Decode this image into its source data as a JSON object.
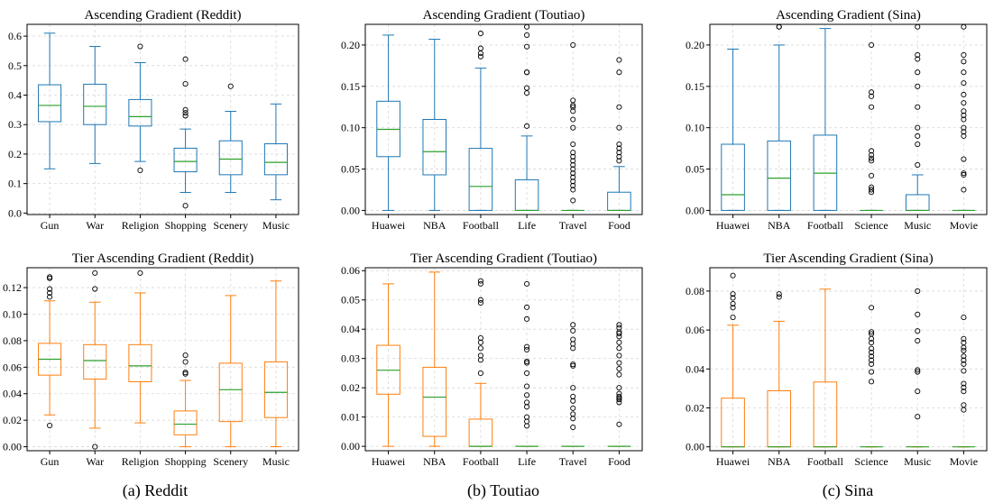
{
  "colors": {
    "asc": "#1f77b4",
    "tier": "#ff7f0e",
    "median": "#2ca02c",
    "outlier": "#000000"
  },
  "captions": [
    {
      "id": "reddit",
      "text": "(a) Reddit"
    },
    {
      "id": "toutiao",
      "text": "(b) Toutiao"
    },
    {
      "id": "sina",
      "text": "(c) Sina"
    }
  ],
  "chart_data": [
    {
      "type": "box",
      "title": "Ascending Gradient (Reddit)",
      "color": "asc",
      "categories": [
        "Gun",
        "War",
        "Religion",
        "Shopping",
        "Scenery",
        "Music"
      ],
      "ylim": [
        -0.005,
        0.64
      ],
      "yticks": [
        0,
        0.1,
        0.2,
        0.3,
        0.4,
        0.5,
        0.6
      ],
      "ytick_labels": [
        "0.0",
        "0.1",
        "0.2",
        "0.3",
        "0.4",
        "0.5",
        "0.6"
      ],
      "boxes": [
        {
          "whislo": 0.15,
          "q1": 0.31,
          "med": 0.365,
          "q3": 0.435,
          "whishi": 0.61,
          "fliers": []
        },
        {
          "whislo": 0.168,
          "q1": 0.3,
          "med": 0.362,
          "q3": 0.437,
          "whishi": 0.565,
          "fliers": []
        },
        {
          "whislo": 0.175,
          "q1": 0.295,
          "med": 0.327,
          "q3": 0.385,
          "whishi": 0.51,
          "fliers": [
            0.565,
            0.145
          ]
        },
        {
          "whislo": 0.07,
          "q1": 0.14,
          "med": 0.175,
          "q3": 0.22,
          "whishi": 0.285,
          "fliers": [
            0.522,
            0.438,
            0.35,
            0.34,
            0.33,
            0.025
          ]
        },
        {
          "whislo": 0.07,
          "q1": 0.13,
          "med": 0.183,
          "q3": 0.245,
          "whishi": 0.345,
          "fliers": [
            0.43
          ]
        },
        {
          "whislo": 0.045,
          "q1": 0.13,
          "med": 0.172,
          "q3": 0.235,
          "whishi": 0.37,
          "fliers": []
        }
      ]
    },
    {
      "type": "box",
      "title": "Ascending Gradient (Toutiao)",
      "color": "asc",
      "categories": [
        "Huawei",
        "NBA",
        "Football",
        "Life",
        "Travel",
        "Food"
      ],
      "ylim": [
        -0.005,
        0.225
      ],
      "yticks": [
        0,
        0.05,
        0.1,
        0.15,
        0.2
      ],
      "ytick_labels": [
        "0.00",
        "0.05",
        "0.10",
        "0.15",
        "0.20"
      ],
      "boxes": [
        {
          "whislo": 0,
          "q1": 0.065,
          "med": 0.098,
          "q3": 0.132,
          "whishi": 0.212,
          "fliers": []
        },
        {
          "whislo": 0,
          "q1": 0.043,
          "med": 0.071,
          "q3": 0.11,
          "whishi": 0.207,
          "fliers": []
        },
        {
          "whislo": 0,
          "q1": 0.0,
          "med": 0.029,
          "q3": 0.075,
          "whishi": 0.172,
          "fliers": [
            0.214,
            0.196,
            0.19,
            0.186
          ]
        },
        {
          "whislo": 0,
          "q1": 0.0,
          "med": 0.0,
          "q3": 0.037,
          "whishi": 0.09,
          "fliers": [
            0.222,
            0.212,
            0.198,
            0.167,
            0.167,
            0.148,
            0.142,
            0.102
          ]
        },
        {
          "whislo": 0,
          "q1": 0.0,
          "med": 0.0,
          "q3": 0.0,
          "whishi": 0.0,
          "fliers": [
            0.2,
            0.133,
            0.127,
            0.125,
            0.12,
            0.11,
            0.1,
            0.08,
            0.07,
            0.065,
            0.06,
            0.055,
            0.05,
            0.045,
            0.04,
            0.035,
            0.03,
            0.025,
            0.012
          ]
        },
        {
          "whislo": 0,
          "q1": 0.0,
          "med": 0.0,
          "q3": 0.022,
          "whishi": 0.053,
          "fliers": [
            0.182,
            0.167,
            0.125,
            0.1,
            0.08,
            0.075,
            0.07,
            0.065,
            0.06
          ]
        }
      ]
    },
    {
      "type": "box",
      "title": "Ascending Gradient (Sina)",
      "color": "asc",
      "categories": [
        "Huawei",
        "NBA",
        "Football",
        "Science",
        "Music",
        "Movie"
      ],
      "ylim": [
        -0.005,
        0.225
      ],
      "yticks": [
        0,
        0.05,
        0.1,
        0.15,
        0.2
      ],
      "ytick_labels": [
        "0.00",
        "0.05",
        "0.10",
        "0.15",
        "0.20"
      ],
      "boxes": [
        {
          "whislo": 0,
          "q1": 0.0,
          "med": 0.019,
          "q3": 0.08,
          "whishi": 0.195,
          "fliers": []
        },
        {
          "whislo": 0,
          "q1": 0.0,
          "med": 0.039,
          "q3": 0.084,
          "whishi": 0.2,
          "fliers": [
            0.222,
            0.222
          ]
        },
        {
          "whislo": 0,
          "q1": 0.0,
          "med": 0.045,
          "q3": 0.091,
          "whishi": 0.22,
          "fliers": []
        },
        {
          "whislo": 0,
          "q1": 0.0,
          "med": 0.0,
          "q3": 0.0,
          "whishi": 0.0,
          "fliers": [
            0.2,
            0.143,
            0.138,
            0.125,
            0.072,
            0.067,
            0.063,
            0.06,
            0.042,
            0.028,
            0.025,
            0.022
          ]
        },
        {
          "whislo": 0,
          "q1": 0.0,
          "med": 0.0,
          "q3": 0.019,
          "whishi": 0.043,
          "fliers": [
            0.222,
            0.188,
            0.183,
            0.167,
            0.15,
            0.125,
            0.1,
            0.09,
            0.08,
            0.055
          ]
        },
        {
          "whislo": 0,
          "q1": 0.0,
          "med": 0.0,
          "q3": 0.0,
          "whishi": 0.0,
          "fliers": [
            0.222,
            0.188,
            0.18,
            0.167,
            0.154,
            0.14,
            0.13,
            0.12,
            0.115,
            0.11,
            0.1,
            0.095,
            0.09,
            0.062,
            0.045,
            0.043,
            0.025
          ]
        }
      ]
    },
    {
      "type": "box",
      "title": "Tier Ascending Gradient (Reddit)",
      "color": "tier",
      "categories": [
        "Gun",
        "War",
        "Religion",
        "Shopping",
        "Scenery",
        "Music"
      ],
      "ylim": [
        -0.003,
        0.135
      ],
      "yticks": [
        0,
        0.02,
        0.04,
        0.06,
        0.08,
        0.1,
        0.12
      ],
      "ytick_labels": [
        "0.00",
        "0.02",
        "0.04",
        "0.06",
        "0.08",
        "0.10",
        "0.12"
      ],
      "boxes": [
        {
          "whislo": 0.024,
          "q1": 0.054,
          "med": 0.066,
          "q3": 0.078,
          "whishi": 0.11,
          "fliers": [
            0.128,
            0.127,
            0.119,
            0.116,
            0.113,
            0.016
          ]
        },
        {
          "whislo": 0.014,
          "q1": 0.051,
          "med": 0.065,
          "q3": 0.077,
          "whishi": 0.109,
          "fliers": [
            0.131,
            0.119,
            0.0
          ]
        },
        {
          "whislo": 0.018,
          "q1": 0.049,
          "med": 0.061,
          "q3": 0.077,
          "whishi": 0.116,
          "fliers": [
            0.131
          ]
        },
        {
          "whislo": 0.0,
          "q1": 0.009,
          "med": 0.017,
          "q3": 0.027,
          "whishi": 0.05,
          "fliers": [
            0.069,
            0.064,
            0.056,
            0.055
          ]
        },
        {
          "whislo": 0.0,
          "q1": 0.019,
          "med": 0.043,
          "q3": 0.063,
          "whishi": 0.114,
          "fliers": []
        },
        {
          "whislo": 0.0,
          "q1": 0.022,
          "med": 0.041,
          "q3": 0.064,
          "whishi": 0.125,
          "fliers": []
        }
      ]
    },
    {
      "type": "box",
      "title": "Tier Ascending Gradient (Toutiao)",
      "color": "tier",
      "categories": [
        "Huawei",
        "NBA",
        "Football",
        "Life",
        "Travel",
        "Food"
      ],
      "ylim": [
        -0.0015,
        0.061
      ],
      "yticks": [
        0,
        0.01,
        0.02,
        0.03,
        0.04,
        0.05,
        0.06
      ],
      "ytick_labels": [
        "0.00",
        "0.01",
        "0.02",
        "0.03",
        "0.04",
        "0.05",
        "0.06"
      ],
      "boxes": [
        {
          "whislo": 0,
          "q1": 0.0178,
          "med": 0.026,
          "q3": 0.0345,
          "whishi": 0.0555,
          "fliers": []
        },
        {
          "whislo": 0,
          "q1": 0.0034,
          "med": 0.0168,
          "q3": 0.027,
          "whishi": 0.0595,
          "fliers": []
        },
        {
          "whislo": 0,
          "q1": 0.0,
          "med": 0.0,
          "q3": 0.0093,
          "whishi": 0.0215,
          "fliers": [
            0.0565,
            0.0555,
            0.05,
            0.049,
            0.037,
            0.0355,
            0.0335,
            0.031,
            0.0295,
            0.025
          ]
        },
        {
          "whislo": 0,
          "q1": 0.0,
          "med": 0.0,
          "q3": 0.0,
          "whishi": 0.0,
          "fliers": [
            0.0555,
            0.0475,
            0.0435,
            0.034,
            0.033,
            0.029,
            0.0285,
            0.025,
            0.0205,
            0.0175,
            0.015,
            0.0135,
            0.01,
            0.0085,
            0.007
          ]
        },
        {
          "whislo": 0,
          "q1": 0.0,
          "med": 0.0,
          "q3": 0.0,
          "whishi": 0.0,
          "fliers": [
            0.0415,
            0.0395,
            0.0365,
            0.035,
            0.0335,
            0.028,
            0.0275,
            0.02,
            0.017,
            0.0155,
            0.013,
            0.011,
            0.0095,
            0.0065
          ]
        },
        {
          "whislo": 0,
          "q1": 0.0,
          "med": 0.0,
          "q3": 0.0,
          "whishi": 0.0,
          "fliers": [
            0.0415,
            0.0405,
            0.039,
            0.0385,
            0.0375,
            0.0355,
            0.0335,
            0.031,
            0.0285,
            0.0265,
            0.0245,
            0.02,
            0.018,
            0.017,
            0.0165,
            0.016,
            0.015,
            0.0075
          ]
        }
      ]
    },
    {
      "type": "box",
      "title": "Tier Ascending Gradient (Sina)",
      "color": "tier",
      "categories": [
        "Huawei",
        "NBA",
        "Football",
        "Science",
        "Music",
        "Movie"
      ],
      "ylim": [
        -0.002,
        0.092
      ],
      "yticks": [
        0,
        0.02,
        0.04,
        0.06,
        0.08
      ],
      "ytick_labels": [
        "0.00",
        "0.02",
        "0.04",
        "0.06",
        "0.08"
      ],
      "boxes": [
        {
          "whislo": 0,
          "q1": 0.0,
          "med": 0.0,
          "q3": 0.025,
          "whishi": 0.0625,
          "fliers": [
            0.088,
            0.0785,
            0.0765,
            0.0735,
            0.0715,
            0.0665
          ]
        },
        {
          "whislo": 0,
          "q1": 0.0,
          "med": 0.0,
          "q3": 0.0288,
          "whishi": 0.0645,
          "fliers": [
            0.0785,
            0.077
          ]
        },
        {
          "whislo": 0,
          "q1": 0.0,
          "med": 0.0,
          "q3": 0.0333,
          "whishi": 0.081,
          "fliers": []
        },
        {
          "whislo": 0,
          "q1": 0.0,
          "med": 0.0,
          "q3": 0.0,
          "whishi": 0.0,
          "fliers": [
            0.0715,
            0.059,
            0.058,
            0.0555,
            0.0535,
            0.0505,
            0.0485,
            0.0465,
            0.0445,
            0.0425,
            0.0385,
            0.0335
          ]
        },
        {
          "whislo": 0,
          "q1": 0.0,
          "med": 0.0,
          "q3": 0.0,
          "whishi": 0.0,
          "fliers": [
            0.08,
            0.068,
            0.0595,
            0.0545,
            0.0395,
            0.0385,
            0.0285,
            0.0155
          ]
        },
        {
          "whislo": 0,
          "q1": 0.0,
          "med": 0.0,
          "q3": 0.0,
          "whishi": 0.0,
          "fliers": [
            0.0665,
            0.0555,
            0.0535,
            0.051,
            0.0495,
            0.0465,
            0.0445,
            0.0425,
            0.039,
            0.0325,
            0.0305,
            0.0285,
            0.0215,
            0.019
          ]
        }
      ]
    }
  ]
}
